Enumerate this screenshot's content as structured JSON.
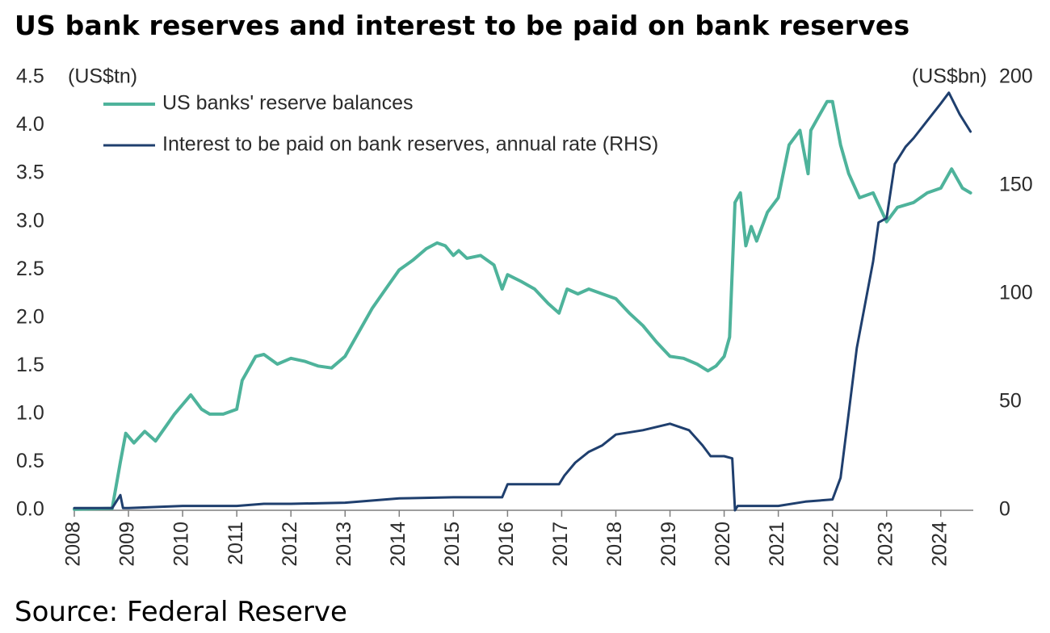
{
  "title": "US bank reserves and interest to be paid on bank reserves",
  "source": "Source: Federal Reserve",
  "colors": {
    "reserves": "#4eb39b",
    "interest": "#1f3f6e",
    "axis": "#7f7f7f",
    "text": "#2b2b2b"
  },
  "chart_data": {
    "type": "line",
    "left_axis": {
      "unit_label": "(US$tn)",
      "ylim": [
        0,
        4.5
      ],
      "ticks": [
        "0.0",
        "0.5",
        "1.0",
        "1.5",
        "2.0",
        "2.5",
        "3.0",
        "3.5",
        "4.0",
        "4.5"
      ]
    },
    "right_axis": {
      "unit_label": "(US$bn)",
      "ylim": [
        0,
        200
      ],
      "ticks": [
        "0",
        "50",
        "100",
        "150",
        "200"
      ]
    },
    "x_axis": {
      "xlim": [
        2008,
        2024.6
      ],
      "ticks": [
        "2008",
        "2009",
        "2010",
        "2011",
        "2012",
        "2013",
        "2014",
        "2015",
        "2016",
        "2017",
        "2018",
        "2019",
        "2020",
        "2021",
        "2022",
        "2023",
        "2024"
      ]
    },
    "legend_position": "top-left",
    "series": [
      {
        "name": "US banks' reserve balances",
        "axis": "left",
        "x": [
          2008.0,
          2008.7,
          2008.85,
          2008.95,
          2009.1,
          2009.3,
          2009.5,
          2009.7,
          2009.85,
          2010.0,
          2010.15,
          2010.35,
          2010.5,
          2010.75,
          2011.0,
          2011.1,
          2011.35,
          2011.5,
          2011.75,
          2012.0,
          2012.25,
          2012.5,
          2012.75,
          2013.0,
          2013.25,
          2013.5,
          2013.75,
          2014.0,
          2014.25,
          2014.5,
          2014.7,
          2014.85,
          2015.0,
          2015.1,
          2015.25,
          2015.5,
          2015.75,
          2015.9,
          2016.0,
          2016.25,
          2016.5,
          2016.75,
          2016.95,
          2017.1,
          2017.3,
          2017.5,
          2017.75,
          2018.0,
          2018.25,
          2018.5,
          2018.75,
          2019.0,
          2019.25,
          2019.5,
          2019.7,
          2019.85,
          2020.0,
          2020.1,
          2020.2,
          2020.3,
          2020.4,
          2020.5,
          2020.6,
          2020.8,
          2021.0,
          2021.2,
          2021.4,
          2021.55,
          2021.6,
          2021.75,
          2021.9,
          2022.0,
          2022.15,
          2022.3,
          2022.5,
          2022.75,
          2023.0,
          2023.2,
          2023.5,
          2023.75,
          2024.0,
          2024.2,
          2024.4,
          2024.55
        ],
        "y": [
          0.01,
          0.02,
          0.5,
          0.8,
          0.7,
          0.82,
          0.72,
          0.88,
          1.0,
          1.1,
          1.2,
          1.05,
          1.0,
          1.0,
          1.05,
          1.35,
          1.6,
          1.62,
          1.52,
          1.58,
          1.55,
          1.5,
          1.48,
          1.6,
          1.85,
          2.1,
          2.3,
          2.5,
          2.6,
          2.72,
          2.78,
          2.75,
          2.65,
          2.7,
          2.62,
          2.65,
          2.55,
          2.3,
          2.45,
          2.38,
          2.3,
          2.15,
          2.05,
          2.3,
          2.25,
          2.3,
          2.25,
          2.2,
          2.05,
          1.92,
          1.75,
          1.6,
          1.58,
          1.52,
          1.45,
          1.5,
          1.6,
          1.8,
          3.2,
          3.3,
          2.75,
          2.95,
          2.8,
          3.1,
          3.25,
          3.8,
          3.95,
          3.5,
          3.95,
          4.1,
          4.25,
          4.25,
          3.8,
          3.5,
          3.25,
          3.3,
          3.0,
          3.15,
          3.2,
          3.3,
          3.35,
          3.55,
          3.35,
          3.3
        ]
      },
      {
        "name": "Interest to be paid on bank reserves, annual rate (RHS)",
        "axis": "right",
        "x": [
          2008.0,
          2008.7,
          2008.85,
          2008.9,
          2009.0,
          2010.0,
          2011.0,
          2011.5,
          2012.0,
          2013.0,
          2014.0,
          2015.0,
          2015.9,
          2016.0,
          2016.5,
          2016.95,
          2017.05,
          2017.25,
          2017.5,
          2017.75,
          2018.0,
          2018.5,
          2019.0,
          2019.35,
          2019.6,
          2019.75,
          2020.0,
          2020.15,
          2020.2,
          2020.25,
          2021.0,
          2021.5,
          2022.0,
          2022.15,
          2022.3,
          2022.45,
          2022.6,
          2022.75,
          2022.85,
          2023.0,
          2023.15,
          2023.35,
          2023.5,
          2023.75,
          2024.0,
          2024.15,
          2024.35,
          2024.55
        ],
        "y": [
          1,
          1,
          7,
          1,
          1,
          2,
          2,
          3,
          3,
          3.5,
          5.5,
          6,
          6,
          12,
          12,
          12,
          16,
          22,
          27,
          30,
          35,
          37,
          40,
          37,
          30,
          25,
          25,
          24,
          0,
          2,
          2,
          4,
          5,
          15,
          45,
          75,
          95,
          115,
          133,
          135,
          160,
          168,
          172,
          180,
          188,
          193,
          183,
          175
        ]
      }
    ]
  }
}
